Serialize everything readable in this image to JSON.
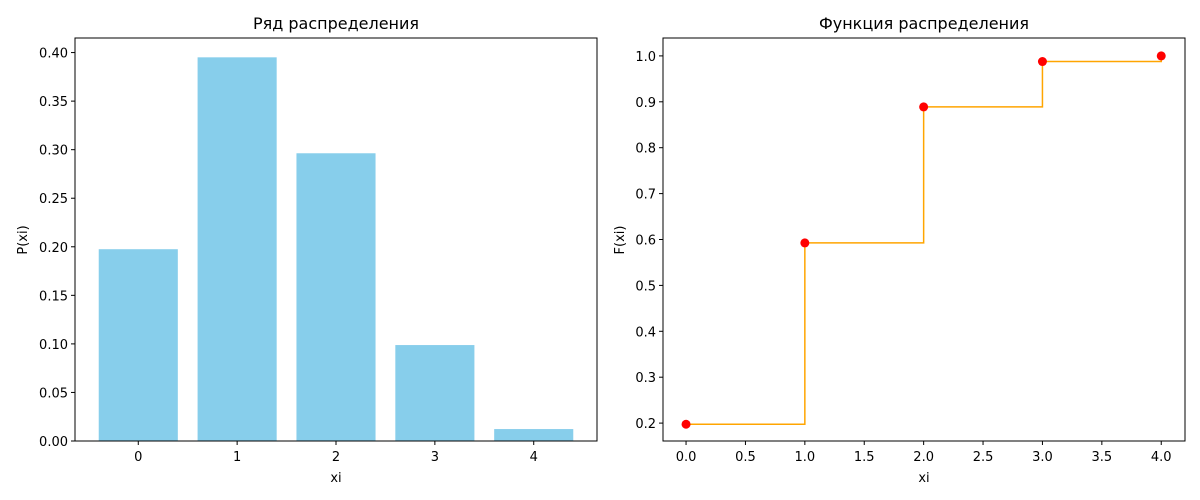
{
  "chart_data": [
    {
      "type": "bar",
      "title": "Ряд распределения",
      "xlabel": "xi",
      "ylabel": "P(xi)",
      "categories": [
        "0",
        "1",
        "2",
        "3",
        "4"
      ],
      "values": [
        0.1975,
        0.3951,
        0.2963,
        0.0988,
        0.0123
      ],
      "ylim": [
        0,
        0.415
      ],
      "yticks": [
        "0.00",
        "0.05",
        "0.10",
        "0.15",
        "0.20",
        "0.25",
        "0.30",
        "0.35",
        "0.40"
      ],
      "color": "#87ceeb",
      "grid": false
    },
    {
      "type": "line",
      "title": "Функция распределения",
      "xlabel": "xi",
      "ylabel": "F(xi)",
      "x": [
        0,
        1,
        2,
        3,
        4
      ],
      "y": [
        0.1975,
        0.5926,
        0.8889,
        0.9877,
        1.0
      ],
      "step": "post",
      "xlim": [
        -0.194,
        4.2
      ],
      "ylim": [
        0.161,
        1.039
      ],
      "xticks": [
        "0.0",
        "0.5",
        "1.0",
        "1.5",
        "2.0",
        "2.5",
        "3.0",
        "3.5",
        "4.0"
      ],
      "yticks": [
        "0.2",
        "0.3",
        "0.4",
        "0.5",
        "0.6",
        "0.7",
        "0.8",
        "0.9",
        "1.0"
      ],
      "line_color": "#ffa500",
      "marker_color": "#ff0000",
      "grid": false
    }
  ]
}
